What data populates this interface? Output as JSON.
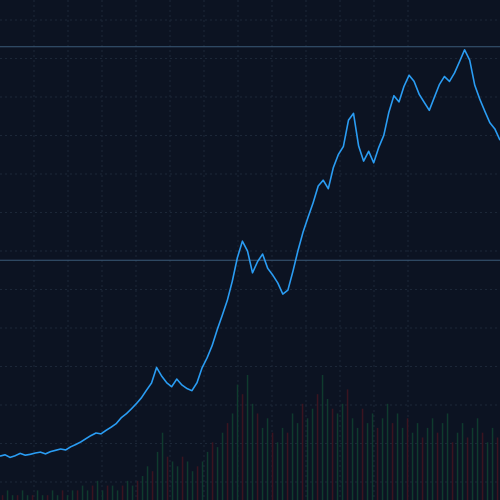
{
  "chart_data": {
    "type": "line",
    "title": "",
    "xlabel": "",
    "ylabel": "",
    "grid": true,
    "colors": {
      "background": "#0c1322",
      "grid": "#1c2738",
      "line": "#2a9df4",
      "volume_up": "#0f3b2e",
      "volume_down": "#3b1420",
      "reference_line": "#3a5a78"
    },
    "ylim": [
      0,
      100
    ],
    "reference_levels": [
      94,
      46
    ],
    "series": [
      {
        "values": [
          2.0,
          2.3,
          1.7,
          2.1,
          2.6,
          2.2,
          2.4,
          2.7,
          2.9,
          2.5,
          3.0,
          3.3,
          3.6,
          3.4,
          4.1,
          4.6,
          5.2,
          5.9,
          6.6,
          7.2,
          7.0,
          7.8,
          8.5,
          9.3,
          10.6,
          11.5,
          12.6,
          13.8,
          15.1,
          16.8,
          18.4,
          21.9,
          20.0,
          18.5,
          17.6,
          19.3,
          18.0,
          17.2,
          16.7,
          18.5,
          21.8,
          24.1,
          26.8,
          30.4,
          33.6,
          37.0,
          41.3,
          46.6,
          50.3,
          48.1,
          43.2,
          45.7,
          47.4,
          44.2,
          42.7,
          40.9,
          38.4,
          39.3,
          43.5,
          48.2,
          52.3,
          55.7,
          58.9,
          62.7,
          64.0,
          62.1,
          66.8,
          69.8,
          71.6,
          77.5,
          79.0,
          71.7,
          68.3,
          70.5,
          67.9,
          71.4,
          74.1,
          79.3,
          83.0,
          81.6,
          85.1,
          87.6,
          86.2,
          83.3,
          81.5,
          79.7,
          82.6,
          85.5,
          87.3,
          86.2,
          88.1,
          90.7,
          93.3,
          91.0,
          85.4,
          82.2,
          79.5,
          76.9,
          75.5,
          73.0
        ]
      }
    ],
    "volume": [
      1,
      2,
      1,
      1,
      2,
      1,
      1,
      2,
      1,
      1,
      2,
      1,
      2,
      1,
      2,
      2,
      3,
      2,
      3,
      4,
      2,
      3,
      3,
      2,
      3,
      4,
      3,
      4,
      5,
      7,
      6,
      10,
      14,
      9,
      8,
      7,
      9,
      8,
      6,
      7,
      8,
      10,
      12,
      11,
      14,
      16,
      18,
      24,
      22,
      26,
      20,
      18,
      15,
      17,
      14,
      12,
      15,
      14,
      18,
      16,
      20,
      17,
      19,
      22,
      26,
      21,
      19,
      18,
      20,
      23,
      17,
      15,
      19,
      16,
      18,
      15,
      17,
      20,
      16,
      18,
      15,
      17,
      14,
      16,
      13,
      15,
      17,
      14,
      16,
      18,
      12,
      14,
      16,
      13,
      15,
      17,
      14,
      12,
      15,
      13
    ]
  }
}
